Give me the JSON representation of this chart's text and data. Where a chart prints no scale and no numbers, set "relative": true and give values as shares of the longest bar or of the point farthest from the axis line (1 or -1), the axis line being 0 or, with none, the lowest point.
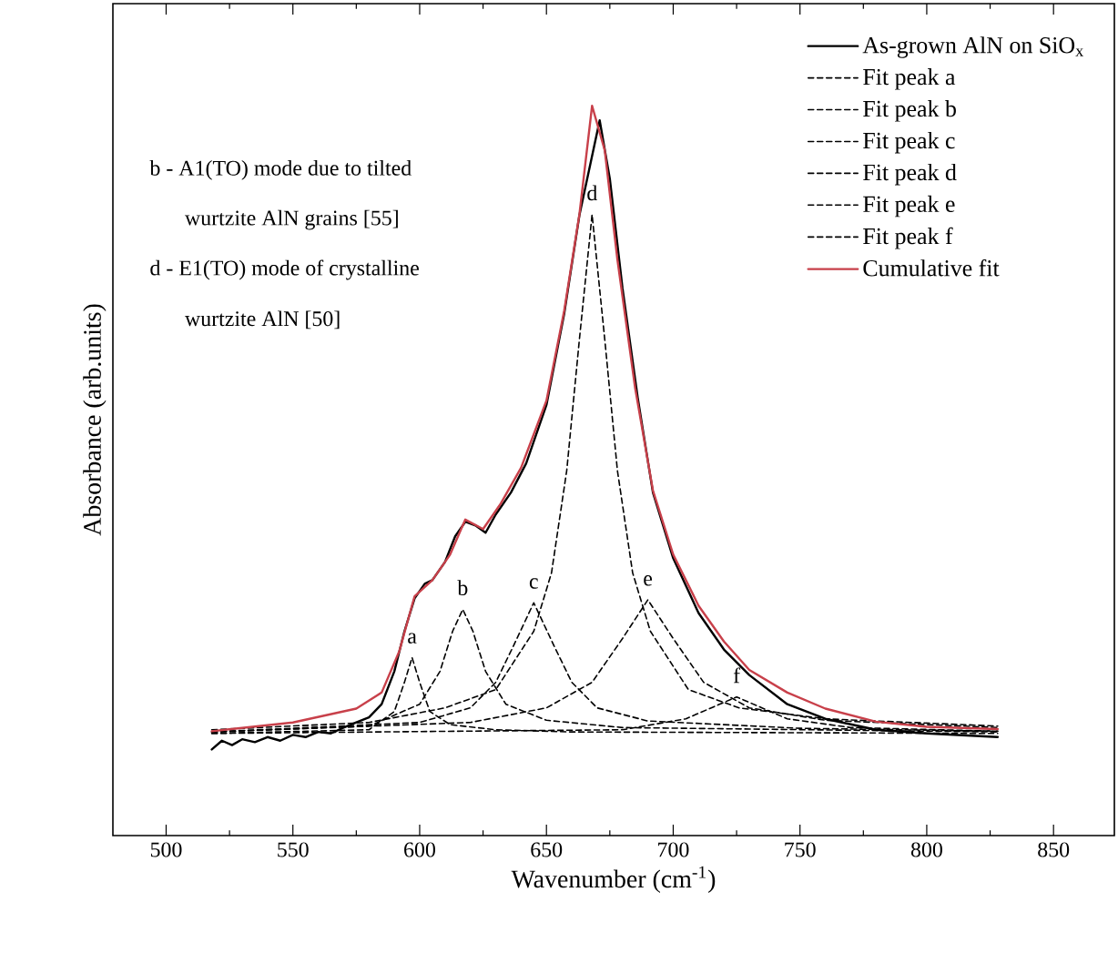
{
  "chart_data": {
    "type": "line",
    "relative": true,
    "xlabel": "Wavenumber (cm$^{-1}$)",
    "ylabel": "Absorbance (arb.units)",
    "xlim": [
      479,
      874
    ],
    "xticks": [
      500,
      550,
      600,
      650,
      700,
      750,
      800,
      850
    ],
    "tick_labels": "x",
    "legend": "top right",
    "marker": "none",
    "grid": false,
    "annotations": [
      "b - A1(TO) mode due to tilted",
      "wurtzite AlN  grains [55]",
      "d - E1(TO) mode of  crystalline",
      "wurtzite AlN  [50]",
      "a",
      "b",
      "c",
      "d",
      "e",
      "f"
    ],
    "series": [
      {
        "name": "As-grown AlN on SiO$_{x}$",
        "color": "#000000",
        "line_style": "solid",
        "x": [
          518,
          522,
          526,
          530,
          535,
          540,
          545,
          550,
          555,
          560,
          565,
          570,
          575,
          580,
          585,
          590,
          594,
          598,
          602,
          605,
          610,
          614,
          618,
          622,
          626,
          630,
          636,
          642,
          650,
          657,
          663,
          668,
          671,
          675,
          680,
          686,
          692,
          700,
          710,
          720,
          730,
          745,
          760,
          780,
          800,
          828
        ],
        "values": [
          0.118,
          0.13,
          0.124,
          0.132,
          0.128,
          0.135,
          0.13,
          0.138,
          0.135,
          0.142,
          0.14,
          0.148,
          0.155,
          0.162,
          0.18,
          0.225,
          0.28,
          0.325,
          0.345,
          0.35,
          0.375,
          0.41,
          0.43,
          0.425,
          0.415,
          0.44,
          0.47,
          0.51,
          0.59,
          0.715,
          0.85,
          null,
          0.98,
          0.9,
          0.75,
          0.6,
          0.47,
          0.38,
          0.305,
          0.255,
          0.22,
          0.18,
          0.16,
          0.145,
          0.14,
          0.135
        ]
      },
      {
        "name": "Fit peak a",
        "color": "#000000",
        "line_style": "dashed",
        "x": [
          518,
          580,
          590,
          594,
          597,
          600,
          604,
          612,
          630,
          660,
          828
        ],
        "values": [
          0.14,
          0.145,
          0.17,
          0.21,
          0.244,
          0.21,
          0.17,
          0.152,
          0.145,
          0.142,
          0.14
        ]
      },
      {
        "name": "Fit peak b",
        "color": "#000000",
        "line_style": "dashed",
        "x": [
          518,
          580,
          600,
          608,
          613,
          617,
          621,
          626,
          634,
          650,
          680,
          828
        ],
        "values": [
          0.142,
          0.15,
          0.18,
          0.225,
          0.28,
          0.31,
          0.28,
          0.225,
          0.18,
          0.158,
          0.148,
          0.142
        ]
      },
      {
        "name": "Fit peak c",
        "color": "#000000",
        "line_style": "dashed",
        "x": [
          518,
          600,
          620,
          630,
          637,
          645,
          653,
          660,
          670,
          690,
          750,
          828
        ],
        "values": [
          0.142,
          0.155,
          0.175,
          0.21,
          0.26,
          0.319,
          0.26,
          0.21,
          0.175,
          0.157,
          0.147,
          0.143
        ]
      },
      {
        "name": "Fit peak d",
        "color": "#000000",
        "line_style": "dashed",
        "x": [
          518,
          580,
          610,
          630,
          645,
          652,
          658,
          663,
          668,
          673,
          678,
          684,
          691,
          706,
          726,
          760,
          828
        ],
        "values": [
          0.145,
          0.155,
          0.175,
          0.2,
          0.28,
          0.36,
          0.5,
          0.68,
          0.851,
          0.68,
          0.5,
          0.36,
          0.28,
          0.2,
          0.175,
          0.16,
          0.15
        ]
      },
      {
        "name": "Fit peak e",
        "color": "#000000",
        "line_style": "dashed",
        "x": [
          518,
          620,
          650,
          668,
          680,
          690,
          700,
          712,
          730,
          760,
          828
        ],
        "values": [
          0.142,
          0.155,
          0.175,
          0.21,
          0.27,
          0.323,
          0.27,
          0.21,
          0.175,
          0.158,
          0.148
        ]
      },
      {
        "name": "Fit peak f",
        "color": "#000000",
        "line_style": "dashed",
        "x": [
          518,
          680,
          705,
          715,
          725,
          735,
          745,
          770,
          828
        ],
        "values": [
          0.14,
          0.145,
          0.16,
          0.175,
          0.19,
          0.175,
          0.16,
          0.148,
          0.143
        ]
      },
      {
        "name": "Cumulative fit",
        "color": "#c8404a",
        "line_style": "solid",
        "x": [
          518,
          550,
          575,
          585,
          592,
          598,
          605,
          612,
          618,
          625,
          632,
          640,
          650,
          657,
          663,
          668,
          673,
          678,
          685,
          692,
          700,
          710,
          720,
          730,
          745,
          760,
          780,
          800,
          828
        ],
        "values": [
          0.143,
          0.155,
          0.174,
          0.196,
          0.253,
          0.328,
          0.35,
          0.385,
          0.433,
          0.42,
          0.455,
          0.504,
          0.596,
          0.719,
          0.851,
          1.0,
          0.939,
          0.789,
          0.613,
          0.473,
          0.385,
          0.315,
          0.266,
          0.227,
          0.196,
          0.174,
          0.156,
          0.149,
          0.146
        ]
      }
    ]
  }
}
